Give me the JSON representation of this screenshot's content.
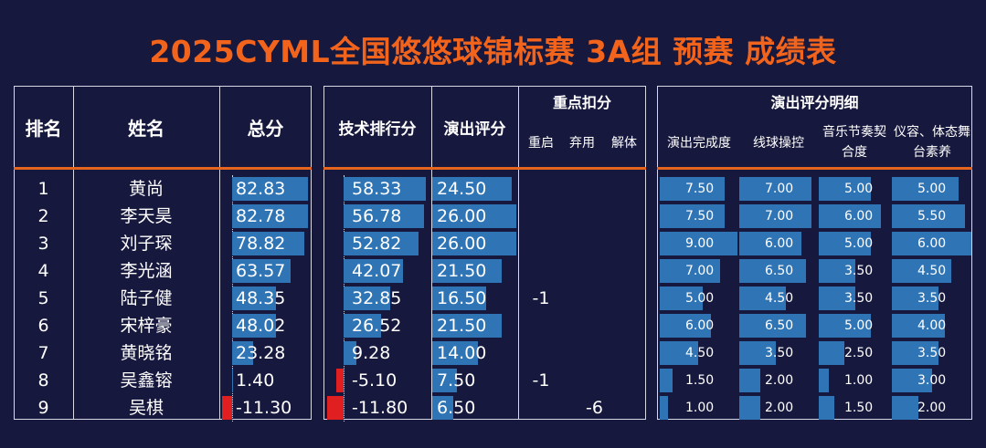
{
  "title": "2025CYML全国悠悠球锦标赛 3A组 预赛 成绩表",
  "headers": {
    "rank": "排名",
    "name": "姓名",
    "total": "总分",
    "tech": "技术排行分",
    "perf": "演出评分",
    "deduct": "重点扣分",
    "deduct_sub": [
      "重启",
      "弃用",
      "解体"
    ],
    "detail": "演出评分明细",
    "detail_sub": [
      "演出完成度",
      "线球操控",
      "音乐节奏契合度",
      "仪容、体态舞台素养"
    ]
  },
  "colors": {
    "title": "#f2641c",
    "background": "#17183d",
    "bar_positive": "#2f74b5",
    "bar_negative": "#e02020",
    "header_rule": "#e5651f"
  },
  "chart_data": {
    "type": "table",
    "rows": [
      {
        "rank": "1",
        "name": "黄尚",
        "total": "82.83",
        "tech": "58.33",
        "perf": "24.50",
        "restart": "",
        "discard": "",
        "breakdown": "",
        "completion": "7.50",
        "control": "7.00",
        "music": "5.00",
        "presence": "5.00"
      },
      {
        "rank": "2",
        "name": "李天昊",
        "total": "82.78",
        "tech": "56.78",
        "perf": "26.00",
        "restart": "",
        "discard": "",
        "breakdown": "",
        "completion": "7.50",
        "control": "7.00",
        "music": "6.00",
        "presence": "5.50"
      },
      {
        "rank": "3",
        "name": "刘子琛",
        "total": "78.82",
        "tech": "52.82",
        "perf": "26.00",
        "restart": "",
        "discard": "",
        "breakdown": "",
        "completion": "9.00",
        "control": "6.00",
        "music": "5.00",
        "presence": "6.00"
      },
      {
        "rank": "4",
        "name": "李光涵",
        "total": "63.57",
        "tech": "42.07",
        "perf": "21.50",
        "restart": "",
        "discard": "",
        "breakdown": "",
        "completion": "7.00",
        "control": "6.50",
        "music": "3.50",
        "presence": "4.50"
      },
      {
        "rank": "5",
        "name": "陆子健",
        "total": "48.35",
        "tech": "32.85",
        "perf": "16.50",
        "restart": "-1",
        "discard": "",
        "breakdown": "",
        "completion": "5.00",
        "control": "4.50",
        "music": "3.50",
        "presence": "3.50"
      },
      {
        "rank": "6",
        "name": "宋梓豪",
        "total": "48.02",
        "tech": "26.52",
        "perf": "21.50",
        "restart": "",
        "discard": "",
        "breakdown": "",
        "completion": "6.00",
        "control": "6.50",
        "music": "5.00",
        "presence": "4.00"
      },
      {
        "rank": "7",
        "name": "黄晓铭",
        "total": "23.28",
        "tech": "9.28",
        "perf": "14.00",
        "restart": "",
        "discard": "",
        "breakdown": "",
        "completion": "4.50",
        "control": "3.50",
        "music": "2.50",
        "presence": "3.50"
      },
      {
        "rank": "8",
        "name": "吴鑫镕",
        "total": "1.40",
        "tech": "-5.10",
        "perf": "7.50",
        "restart": "-1",
        "discard": "",
        "breakdown": "",
        "completion": "1.50",
        "control": "2.00",
        "music": "1.00",
        "presence": "3.00"
      },
      {
        "rank": "9",
        "name": "吴棋",
        "total": "-11.30",
        "tech": "-11.80",
        "perf": "6.50",
        "restart": "",
        "discard": "-6",
        "breakdown": "",
        "completion": "1.00",
        "control": "2.00",
        "music": "1.50",
        "presence": "2.00"
      }
    ]
  }
}
